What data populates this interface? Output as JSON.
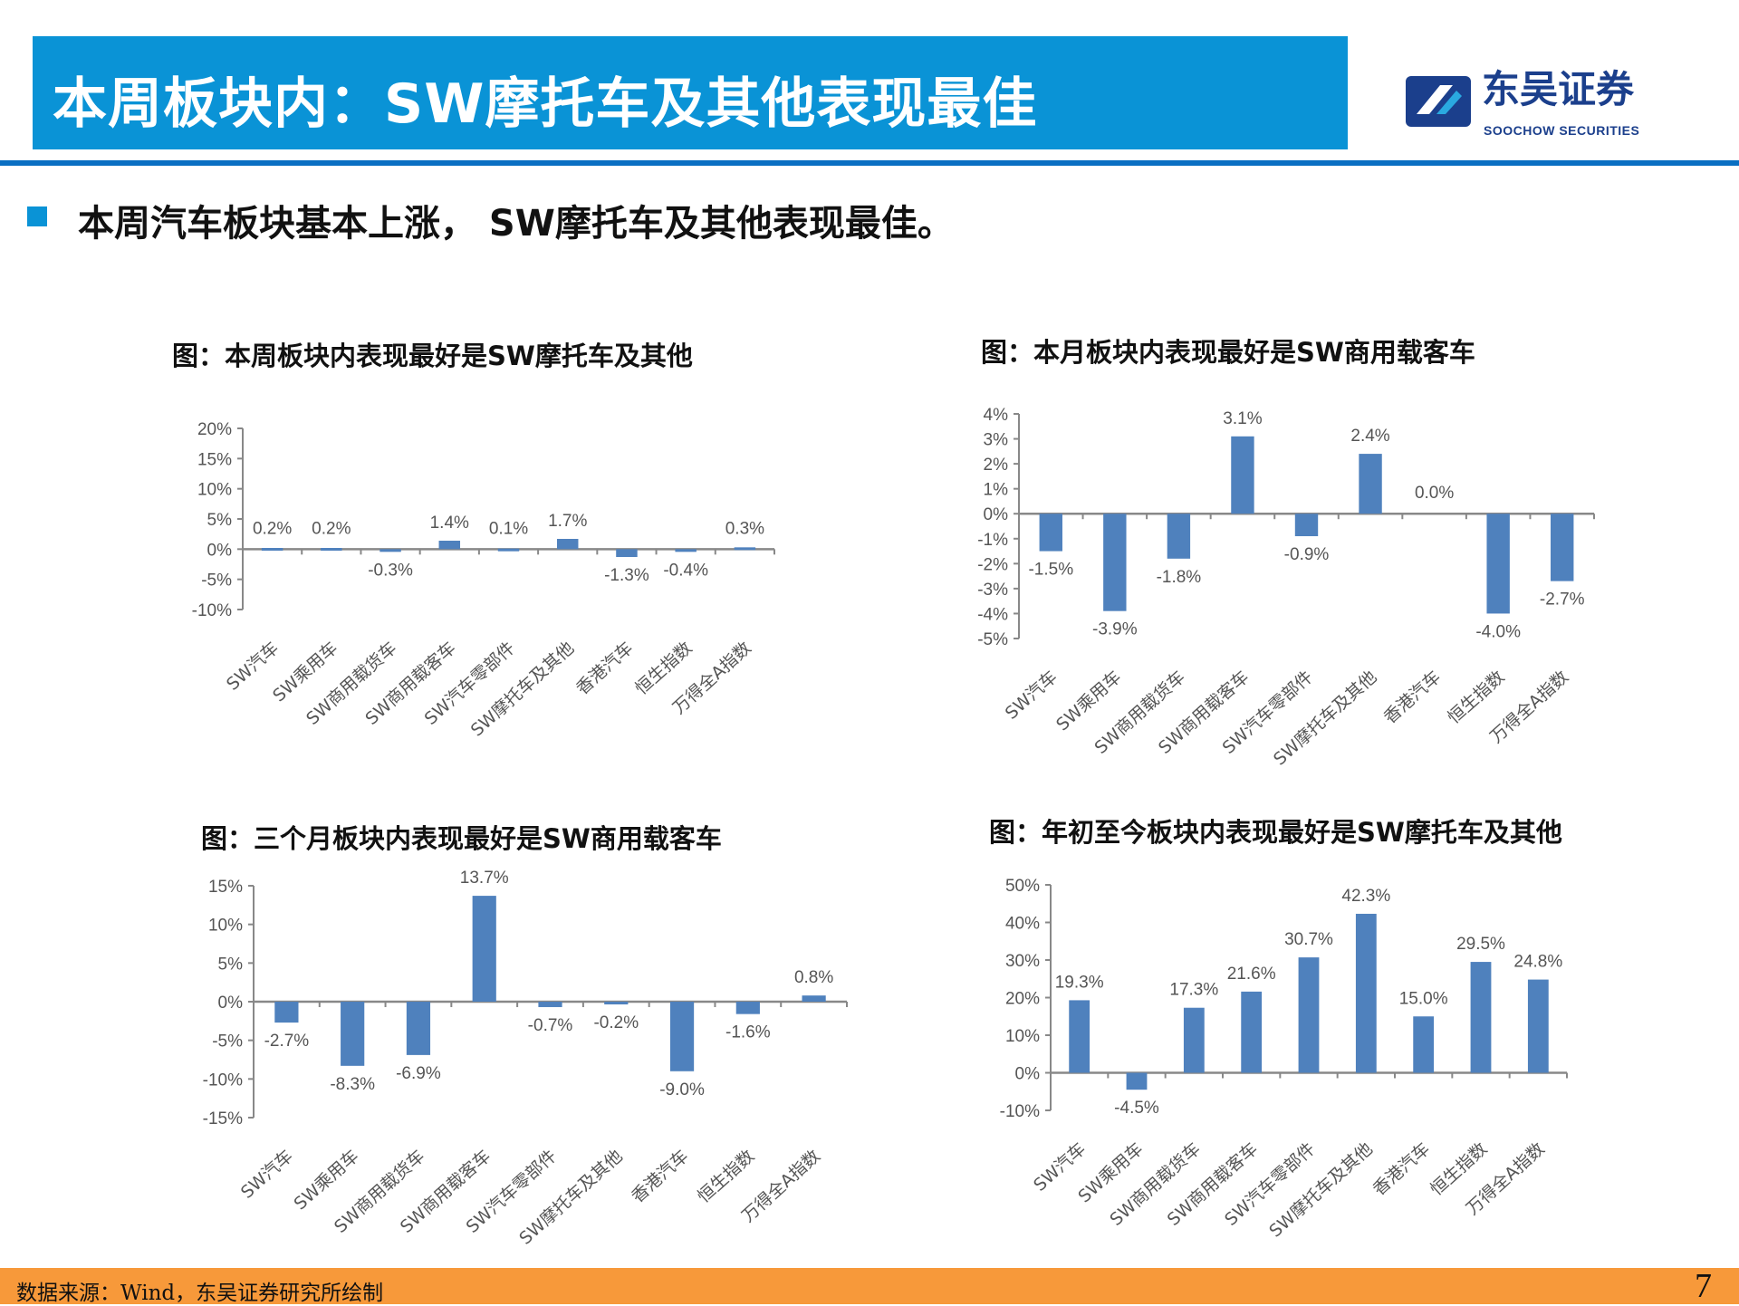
{
  "header": {
    "title": "本周板块内：SW摩托车及其他表现最佳",
    "logo_cn": "东吴证券",
    "logo_en": "SOOCHOW SECURITIES"
  },
  "subtitle": "本周汽车板块基本上涨， SW摩托车及其他表现最佳。",
  "colors": {
    "bar": "#4f81bd",
    "title_bar": "#0a93d6",
    "footer": "#f7993a"
  },
  "footer": {
    "source": "数据来源：Wind，东吴证券研究所绘制",
    "page": "7"
  },
  "chart_data": [
    {
      "type": "bar",
      "title": "图：本周板块内表现最好是SW摩托车及其他",
      "categories": [
        "SW汽车",
        "SW乘用车",
        "SW商用载货车",
        "SW商用载客车",
        "SW汽车零部件",
        "SW摩托车及其他",
        "香港汽车",
        "恒生指数",
        "万得全A指数"
      ],
      "values": [
        0.2,
        0.2,
        -0.3,
        1.4,
        0.1,
        1.7,
        -1.3,
        -0.4,
        0.3
      ],
      "labels": [
        "0.2%",
        "0.2%",
        "-0.3%",
        "1.4%",
        "0.1%",
        "1.7%",
        "-1.3%",
        "-0.4%",
        "0.3%"
      ],
      "ylim": [
        -10,
        20
      ],
      "yticks": [
        "20%",
        "15%",
        "10%",
        "5%",
        "0%",
        "-5%",
        "-10%"
      ],
      "grid": false
    },
    {
      "type": "bar",
      "title": "图：本月板块内表现最好是SW商用载客车",
      "categories": [
        "SW汽车",
        "SW乘用车",
        "SW商用载货车",
        "SW商用载客车",
        "SW汽车零部件",
        "SW摩托车及其他",
        "香港汽车",
        "恒生指数",
        "万得全A指数"
      ],
      "values": [
        -1.5,
        -3.9,
        -1.8,
        3.1,
        -0.9,
        2.4,
        0.0,
        -4.0,
        -2.7
      ],
      "labels": [
        "-1.5%",
        "-3.9%",
        "-1.8%",
        "3.1%",
        "-0.9%",
        "2.4%",
        "0.0%",
        "-4.0%",
        "-2.7%"
      ],
      "ylim": [
        -5,
        4
      ],
      "yticks": [
        "4%",
        "3%",
        "2%",
        "1%",
        "0%",
        "-1%",
        "-2%",
        "-3%",
        "-4%",
        "-5%"
      ],
      "grid": false
    },
    {
      "type": "bar",
      "title": "图：三个月板块内表现最好是SW商用载客车",
      "categories": [
        "SW汽车",
        "SW乘用车",
        "SW商用载货车",
        "SW商用载客车",
        "SW汽车零部件",
        "SW摩托车及其他",
        "香港汽车",
        "恒生指数",
        "万得全A指数"
      ],
      "values": [
        -2.7,
        -8.3,
        -6.9,
        13.7,
        -0.7,
        -0.2,
        -9.0,
        -1.6,
        0.8
      ],
      "labels": [
        "-2.7%",
        "-8.3%",
        "-6.9%",
        "13.7%",
        "-0.7%",
        "-0.2%",
        "-9.0%",
        "-1.6%",
        "0.8%"
      ],
      "ylim": [
        -15,
        15
      ],
      "yticks": [
        "15%",
        "10%",
        "5%",
        "0%",
        "-5%",
        "-10%",
        "-15%"
      ],
      "grid": false
    },
    {
      "type": "bar",
      "title": "图：年初至今板块内表现最好是SW摩托车及其他",
      "categories": [
        "SW汽车",
        "SW乘用车",
        "SW商用载货车",
        "SW商用载客车",
        "SW汽车零部件",
        "SW摩托车及其他",
        "香港汽车",
        "恒生指数",
        "万得全A指数"
      ],
      "values": [
        19.3,
        -4.5,
        17.3,
        21.6,
        30.7,
        42.3,
        15.0,
        29.5,
        24.8
      ],
      "labels": [
        "19.3%",
        "-4.5%",
        "17.3%",
        "21.6%",
        "30.7%",
        "42.3%",
        "15.0%",
        "29.5%",
        "24.8%"
      ],
      "ylim": [
        -10,
        50
      ],
      "yticks": [
        "50%",
        "40%",
        "30%",
        "20%",
        "10%",
        "0%",
        "-10%"
      ],
      "grid": false
    }
  ]
}
